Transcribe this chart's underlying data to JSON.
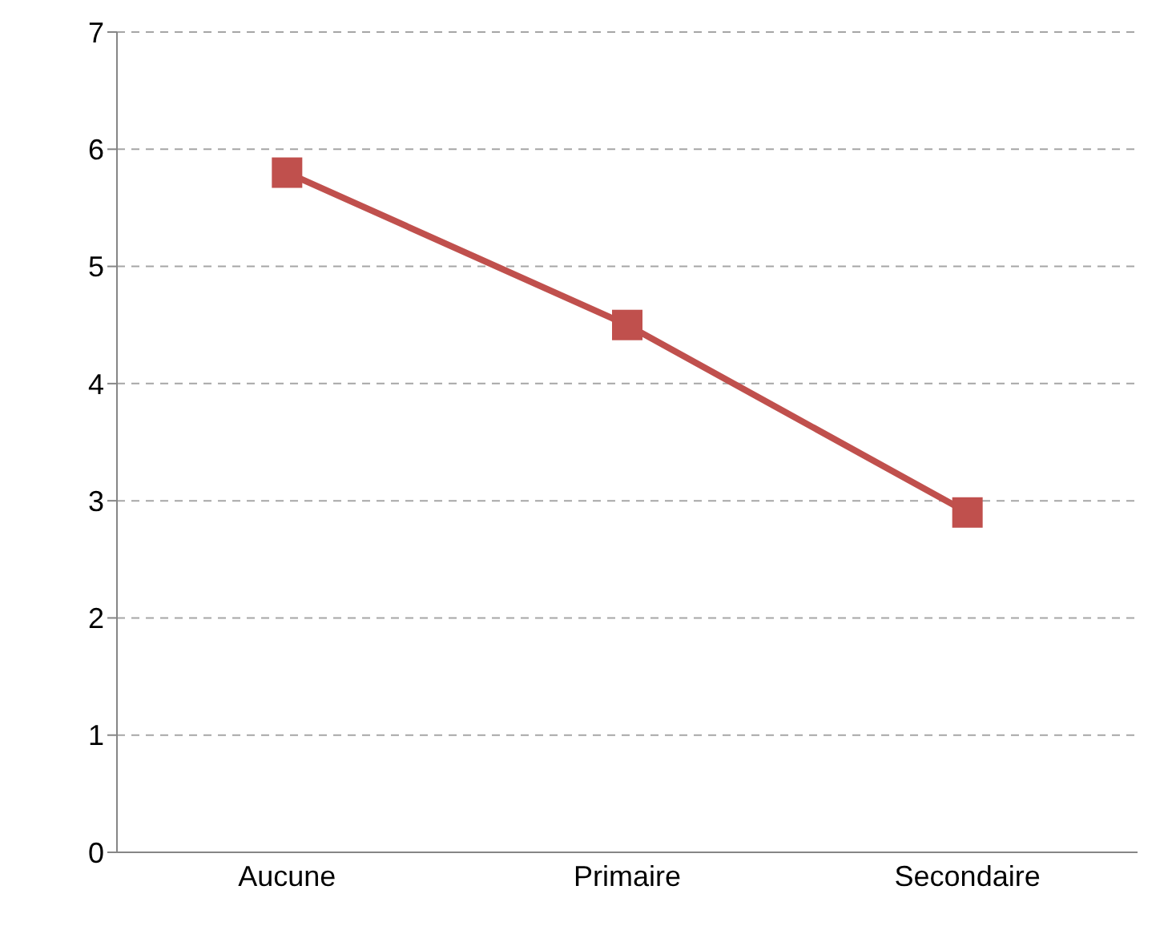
{
  "chart_data": {
    "type": "line",
    "categories": [
      "Aucune",
      "Primaire",
      "Secondaire"
    ],
    "series": [
      {
        "color": "#c0504d",
        "values": [
          5.8,
          4.5,
          2.9
        ]
      }
    ],
    "ylim": [
      0,
      7
    ],
    "yticks": [
      0,
      1,
      2,
      3,
      4,
      5,
      6,
      7
    ],
    "grid": "y",
    "legend": false,
    "marker": "square",
    "line_style": "solid"
  }
}
